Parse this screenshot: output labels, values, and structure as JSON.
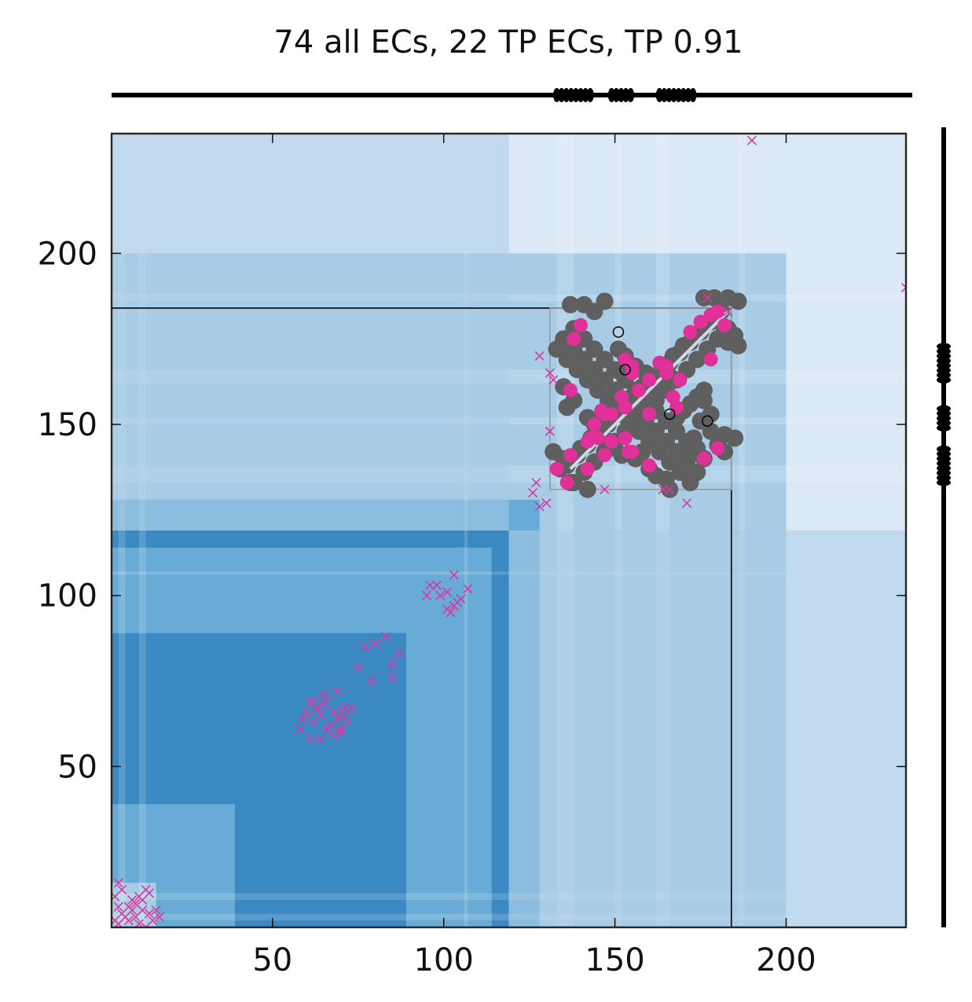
{
  "chart_data": {
    "type": "scatter",
    "title": "74 all ECs, 22 TP ECs, TP 0.91",
    "xlabel": "",
    "ylabel": "",
    "xlim": [
      3,
      235
    ],
    "ylim": [
      3,
      235
    ],
    "x_ticks": [
      50,
      100,
      150,
      200
    ],
    "y_ticks": [
      50,
      100,
      150,
      200
    ],
    "x_tick_labels": [
      "50",
      "100",
      "150",
      "200"
    ],
    "y_tick_labels": [
      "50",
      "100",
      "150",
      "200"
    ],
    "grid": false,
    "legend": "none",
    "colors": {
      "ec_marker": "#e0309a",
      "ec_cross": "#d63aa0",
      "reference_contact": "#5f5f5f",
      "strand_line": "#000000",
      "blue_dark": "#3a89c2",
      "blue_mid": "#68abd6",
      "blue_light": "#a9cce6",
      "blue_pale": "#dbe8f6"
    },
    "heatmap_blocks": [
      {
        "x0": 3,
        "x1": 235,
        "y0": 3,
        "y1": 235,
        "level": "pale"
      },
      {
        "x0": 3,
        "x1": 200,
        "y0": 3,
        "y1": 200,
        "level": "light"
      },
      {
        "x0": 3,
        "x1": 190,
        "y0": 3,
        "y1": 190,
        "level": "light"
      },
      {
        "x0": 3,
        "x1": 128,
        "y0": 3,
        "y1": 128,
        "level": "mid"
      },
      {
        "x0": 3,
        "x1": 119,
        "y0": 3,
        "y1": 119,
        "level": "dark"
      },
      {
        "x0": 3,
        "x1": 114,
        "y0": 3,
        "y1": 114,
        "level": "mid"
      },
      {
        "x0": 3,
        "x1": 89,
        "y0": 3,
        "y1": 89,
        "level": "dark"
      },
      {
        "x0": 3,
        "x1": 39,
        "y0": 3,
        "y1": 39,
        "level": "mid"
      },
      {
        "x0": 3,
        "x1": 16,
        "y0": 3,
        "y1": 16,
        "level": "light"
      }
    ],
    "domain_boxes": [
      {
        "x0": 3,
        "x1": 184,
        "y0": 3,
        "y1": 184,
        "stroke": "#000000"
      },
      {
        "x0": 131,
        "x1": 184,
        "y0": 131,
        "y1": 184,
        "stroke": "#999999"
      }
    ],
    "reference_contacts": [
      [
        136,
        138
      ],
      [
        139,
        141
      ],
      [
        142,
        144
      ],
      [
        145,
        147
      ],
      [
        148,
        150
      ],
      [
        151,
        153
      ],
      [
        154,
        156
      ],
      [
        157,
        159
      ],
      [
        160,
        162
      ],
      [
        163,
        165
      ],
      [
        166,
        168
      ],
      [
        169,
        171
      ],
      [
        172,
        174
      ],
      [
        175,
        177
      ],
      [
        178,
        180
      ],
      [
        181,
        183
      ],
      [
        134,
        137
      ],
      [
        137,
        140
      ],
      [
        140,
        143
      ],
      [
        143,
        146
      ],
      [
        146,
        149
      ],
      [
        149,
        152
      ],
      [
        152,
        155
      ],
      [
        155,
        158
      ],
      [
        158,
        161
      ],
      [
        161,
        164
      ],
      [
        164,
        167
      ],
      [
        167,
        170
      ],
      [
        170,
        173
      ],
      [
        173,
        176
      ],
      [
        176,
        179
      ],
      [
        138,
        133
      ],
      [
        141,
        136
      ],
      [
        144,
        139
      ],
      [
        147,
        142
      ],
      [
        150,
        145
      ],
      [
        153,
        148
      ],
      [
        156,
        151
      ],
      [
        159,
        154
      ],
      [
        162,
        157
      ],
      [
        165,
        160
      ],
      [
        168,
        163
      ],
      [
        171,
        166
      ],
      [
        174,
        169
      ],
      [
        177,
        172
      ],
      [
        180,
        175
      ],
      [
        183,
        178
      ],
      [
        135,
        175
      ],
      [
        138,
        172
      ],
      [
        141,
        169
      ],
      [
        144,
        166
      ],
      [
        147,
        163
      ],
      [
        150,
        160
      ],
      [
        153,
        157
      ],
      [
        156,
        154
      ],
      [
        159,
        151
      ],
      [
        162,
        148
      ],
      [
        165,
        145
      ],
      [
        168,
        142
      ],
      [
        171,
        139
      ],
      [
        174,
        136
      ],
      [
        133,
        172
      ],
      [
        136,
        169
      ],
      [
        139,
        166
      ],
      [
        142,
        163
      ],
      [
        145,
        160
      ],
      [
        148,
        157
      ],
      [
        151,
        154
      ],
      [
        154,
        151
      ],
      [
        157,
        148
      ],
      [
        160,
        145
      ],
      [
        163,
        142
      ],
      [
        166,
        139
      ],
      [
        169,
        136
      ],
      [
        172,
        133
      ],
      [
        138,
        178
      ],
      [
        141,
        175
      ],
      [
        144,
        172
      ],
      [
        147,
        169
      ],
      [
        150,
        166
      ],
      [
        153,
        163
      ],
      [
        156,
        160
      ],
      [
        159,
        157
      ],
      [
        162,
        154
      ],
      [
        165,
        151
      ],
      [
        168,
        148
      ],
      [
        171,
        145
      ],
      [
        174,
        142
      ],
      [
        137,
        185
      ],
      [
        141,
        185
      ],
      [
        144,
        183
      ],
      [
        147,
        186
      ],
      [
        176,
        187
      ],
      [
        179,
        187
      ],
      [
        183,
        187
      ],
      [
        186,
        186
      ],
      [
        182,
        178
      ],
      [
        185,
        176
      ],
      [
        186,
        173
      ],
      [
        183,
        174
      ],
      [
        180,
        175
      ],
      [
        178,
        148
      ],
      [
        182,
        147
      ],
      [
        185,
        146
      ],
      [
        180,
        144
      ],
      [
        174,
        143
      ],
      [
        176,
        140
      ],
      [
        182,
        142
      ],
      [
        172,
        141
      ],
      [
        176,
        157
      ],
      [
        178,
        153
      ],
      [
        175,
        151
      ],
      [
        173,
        146
      ],
      [
        132,
        142
      ],
      [
        135,
        140
      ],
      [
        137,
        133
      ],
      [
        142,
        131
      ],
      [
        138,
        157
      ],
      [
        136,
        155
      ],
      [
        135,
        161
      ],
      [
        165,
        134
      ],
      [
        166,
        131
      ],
      [
        162,
        135
      ],
      [
        160,
        137
      ],
      [
        156,
        140
      ],
      [
        158,
        142
      ],
      [
        162,
        160
      ],
      [
        164,
        162
      ],
      [
        166,
        164
      ],
      [
        159,
        165
      ],
      [
        156,
        167
      ],
      [
        152,
        165
      ],
      [
        153,
        170
      ],
      [
        151,
        172
      ],
      [
        144,
        150
      ],
      [
        142,
        152
      ],
      [
        146,
        148
      ],
      [
        148,
        145
      ],
      [
        150,
        143
      ],
      [
        152,
        141
      ],
      [
        168,
        152
      ],
      [
        170,
        154
      ],
      [
        172,
        156
      ],
      [
        174,
        158
      ],
      [
        176,
        160
      ]
    ],
    "ec_points": [
      [
        140,
        179
      ],
      [
        138,
        175
      ],
      [
        137,
        160
      ],
      [
        153,
        169
      ],
      [
        155,
        167
      ],
      [
        155,
        165
      ],
      [
        160,
        163
      ],
      [
        163,
        168
      ],
      [
        165,
        167
      ],
      [
        169,
        163
      ],
      [
        172,
        177
      ],
      [
        175,
        180
      ],
      [
        178,
        182
      ],
      [
        180,
        183
      ],
      [
        182,
        179
      ],
      [
        178,
        169
      ],
      [
        180,
        143
      ],
      [
        176,
        140
      ],
      [
        168,
        155
      ],
      [
        167,
        158
      ],
      [
        160,
        153
      ],
      [
        157,
        160
      ],
      [
        152,
        158
      ],
      [
        153,
        155
      ],
      [
        149,
        153
      ],
      [
        147,
        153
      ],
      [
        144,
        150
      ],
      [
        145,
        146
      ],
      [
        147,
        141
      ],
      [
        149,
        145
      ],
      [
        153,
        146
      ],
      [
        155,
        142
      ],
      [
        154,
        142
      ],
      [
        160,
        138
      ],
      [
        133,
        137
      ],
      [
        137,
        141
      ],
      [
        142,
        145
      ],
      [
        143,
        146
      ],
      [
        136,
        133
      ],
      [
        142,
        137
      ],
      [
        146,
        154
      ],
      [
        165,
        165
      ]
    ],
    "ec_crosses": [
      [
        4,
        5
      ],
      [
        5,
        4
      ],
      [
        6,
        7
      ],
      [
        7,
        6
      ],
      [
        8,
        9
      ],
      [
        9,
        8
      ],
      [
        10,
        10
      ],
      [
        11,
        12
      ],
      [
        12,
        11
      ],
      [
        13,
        14
      ],
      [
        14,
        13
      ],
      [
        5,
        9
      ],
      [
        8,
        5
      ],
      [
        10,
        6
      ],
      [
        12,
        8
      ],
      [
        4,
        12
      ],
      [
        6,
        14
      ],
      [
        9,
        11
      ],
      [
        11,
        4
      ],
      [
        14,
        7
      ],
      [
        15,
        5
      ],
      [
        16,
        8
      ],
      [
        13,
        3
      ],
      [
        17,
        6
      ],
      [
        5,
        16
      ],
      [
        58,
        61
      ],
      [
        59,
        64
      ],
      [
        60,
        66
      ],
      [
        61,
        69
      ],
      [
        62,
        63
      ],
      [
        63,
        67
      ],
      [
        64,
        65
      ],
      [
        65,
        68
      ],
      [
        66,
        70
      ],
      [
        67,
        62
      ],
      [
        68,
        66
      ],
      [
        69,
        64
      ],
      [
        70,
        60
      ],
      [
        71,
        67
      ],
      [
        72,
        63
      ],
      [
        61,
        58
      ],
      [
        64,
        58
      ],
      [
        66,
        61
      ],
      [
        68,
        59
      ],
      [
        70,
        61
      ],
      [
        62,
        69
      ],
      [
        65,
        71
      ],
      [
        69,
        72
      ],
      [
        71,
        65
      ],
      [
        73,
        67
      ],
      [
        75,
        79
      ],
      [
        77,
        85
      ],
      [
        80,
        86
      ],
      [
        79,
        75
      ],
      [
        83,
        88
      ],
      [
        85,
        80
      ],
      [
        87,
        83
      ],
      [
        85,
        76
      ],
      [
        95,
        100
      ],
      [
        96,
        103
      ],
      [
        98,
        103
      ],
      [
        99,
        100
      ],
      [
        101,
        101
      ],
      [
        103,
        106
      ],
      [
        101,
        96
      ],
      [
        102,
        95
      ],
      [
        103,
        97
      ],
      [
        105,
        99
      ],
      [
        107,
        102
      ],
      [
        104,
        98
      ],
      [
        126,
        130
      ],
      [
        127,
        133
      ],
      [
        128,
        126
      ],
      [
        130,
        127
      ],
      [
        131,
        148
      ],
      [
        131,
        165
      ],
      [
        128,
        170
      ],
      [
        132,
        163
      ],
      [
        147,
        131
      ],
      [
        164,
        131
      ],
      [
        166,
        131
      ],
      [
        171,
        127
      ],
      [
        177,
        187
      ],
      [
        183,
        183
      ],
      [
        190,
        233
      ],
      [
        235,
        190
      ]
    ],
    "strand_markers": [
      {
        "start": 133,
        "end": 143
      },
      {
        "start": 149,
        "end": 156
      },
      {
        "start": 163,
        "end": 173
      }
    ],
    "domain_borders": [
      3,
      235
    ]
  }
}
